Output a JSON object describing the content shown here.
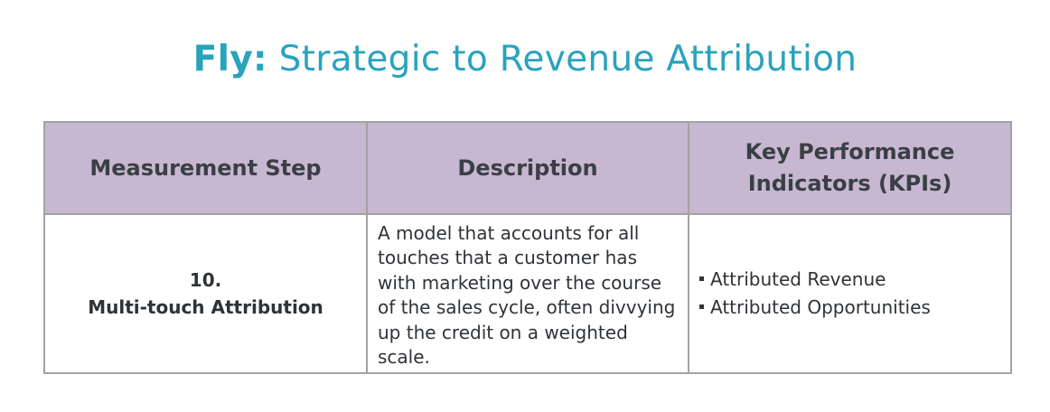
{
  "title": {
    "brand": "Fly:",
    "text": "Strategic to Revenue Attribution"
  },
  "table": {
    "headers": [
      "Measurement Step",
      "Description",
      "Key Performance Indicators (KPIs)"
    ],
    "rows": [
      {
        "step_number": "10.",
        "step_name": "Multi-touch Attribution",
        "description": "A model that accounts for all touches that a customer has with marketing over the course of the sales cycle, often divvying up the credit on a weighted scale.",
        "kpis": [
          "Attributed Revenue",
          "Attributed Opportunities"
        ]
      }
    ]
  },
  "colors": {
    "title": "#2aa3bd",
    "header_background": "#c7b7d0",
    "border": "#a3a3a3",
    "text": "#2f3337"
  }
}
